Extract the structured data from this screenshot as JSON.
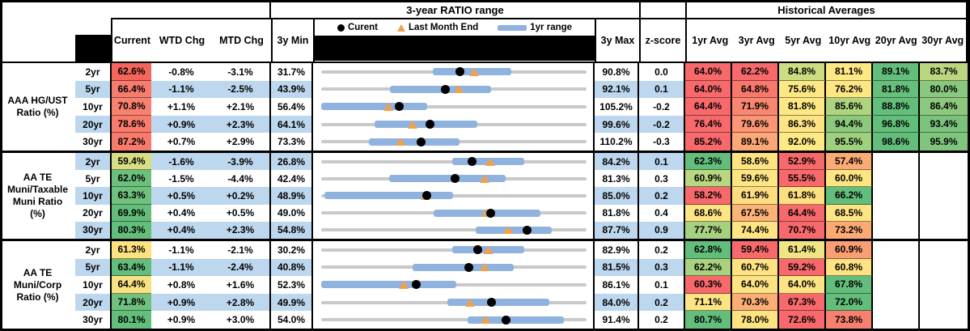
{
  "titles": {
    "ratio_range": "3-year RATIO range",
    "historical_averages": "Historical Averages"
  },
  "legend": {
    "current": "Curent",
    "last_month_end": "Last Month End",
    "one_yr_range": "1yr range"
  },
  "columns": {
    "current": "Current",
    "wtd": "WTD Chg",
    "mtd": "MTD Chg",
    "min3y": "3y Min",
    "max3y": "3y Max",
    "zscore": "z-score",
    "avgs": [
      "1yr Avg",
      "3yr Avg",
      "5yr Avg",
      "10yr Avg",
      "20yr Avg",
      "30yr Avg"
    ]
  },
  "colors": {
    "stripe": "#BDD7EE",
    "track": "#C9C9C9",
    "bar_1yr": "#8FB2DF",
    "dot_current": "#000000",
    "triangle_lme": "#F0A14E",
    "heat_red": "#F8696B",
    "heat_yellow": "#FFE984",
    "heat_green": "#63BE7B"
  },
  "chart_data": {
    "type": "table",
    "description": "Muni ratio table: current/WTD/MTD, 3-year range strip chart (dot=current, triangle=last month end, bar=1yr range), z-score, historical average heatmap",
    "groups": [
      {
        "label_lines": [
          "AAA HG/UST",
          "Ratio (%)"
        ],
        "rows": [
          {
            "term": "2yr",
            "stripe": false,
            "current": {
              "v": "62.6%",
              "c": "#F4655C"
            },
            "wtd": "-0.8%",
            "mtd": "-3.1%",
            "min": 31.7,
            "max": 90.8,
            "z": "0.0",
            "bar": [
              56.5,
              74.0
            ],
            "dot": 62.6,
            "tri": 65.7,
            "avgs": [
              {
                "v": "64.0%",
                "c": "#F8696B"
              },
              {
                "v": "62.2%",
                "c": "#F8696B"
              },
              {
                "v": "84.8%",
                "c": "#CCDD81"
              },
              {
                "v": "81.1%",
                "c": "#FFE984"
              },
              {
                "v": "89.1%",
                "c": "#63BE7B"
              },
              {
                "v": "83.7%",
                "c": "#BAD77F"
              }
            ]
          },
          {
            "term": "5yr",
            "stripe": true,
            "current": {
              "v": "66.4%",
              "c": "#F87C6D"
            },
            "wtd": "-1.1%",
            "mtd": "-2.5%",
            "min": 43.9,
            "max": 92.1,
            "z": "0.1",
            "bar": [
              56.4,
              74.7
            ],
            "dot": 66.4,
            "tri": 68.9,
            "avgs": [
              {
                "v": "64.0%",
                "c": "#F8696B"
              },
              {
                "v": "64.8%",
                "c": "#F9786C"
              },
              {
                "v": "75.6%",
                "c": "#FEE883"
              },
              {
                "v": "76.2%",
                "c": "#FEE783"
              },
              {
                "v": "81.8%",
                "c": "#68BF7B"
              },
              {
                "v": "80.0%",
                "c": "#89C87E"
              }
            ]
          },
          {
            "term": "10yr",
            "stripe": false,
            "current": {
              "v": "70.8%",
              "c": "#F9816F"
            },
            "wtd": "+1.1%",
            "mtd": "+2.1%",
            "min": 56.4,
            "max": 105.2,
            "z": "-0.2",
            "bar": [
              56.4,
              75.9
            ],
            "dot": 70.8,
            "tri": 68.7,
            "avgs": [
              {
                "v": "64.4%",
                "c": "#F8696B"
              },
              {
                "v": "71.9%",
                "c": "#F98670"
              },
              {
                "v": "81.8%",
                "c": "#FEE883"
              },
              {
                "v": "85.6%",
                "c": "#AFD47F"
              },
              {
                "v": "88.8%",
                "c": "#63BE7B"
              },
              {
                "v": "86.4%",
                "c": "#8CC97E"
              }
            ]
          },
          {
            "term": "20yr",
            "stripe": true,
            "current": {
              "v": "78.6%",
              "c": "#F87B6C"
            },
            "wtd": "+0.9%",
            "mtd": "+2.3%",
            "min": 64.1,
            "max": 99.6,
            "z": "-0.2",
            "bar": [
              71.2,
              85.0
            ],
            "dot": 78.6,
            "tri": 76.3,
            "avgs": [
              {
                "v": "76.4%",
                "c": "#F8696B"
              },
              {
                "v": "79.6%",
                "c": "#FA9674"
              },
              {
                "v": "86.3%",
                "c": "#FDE483"
              },
              {
                "v": "94.4%",
                "c": "#8CC97D"
              },
              {
                "v": "96.8%",
                "c": "#63BE7B"
              },
              {
                "v": "93.4%",
                "c": "#7BC37C"
              }
            ]
          },
          {
            "term": "30yr",
            "stripe": false,
            "current": {
              "v": "87.2%",
              "c": "#F87A6B"
            },
            "wtd": "+0.7%",
            "mtd": "+2.9%",
            "min": 73.3,
            "max": 110.2,
            "z": "-0.3",
            "bar": [
              79.9,
              92.5
            ],
            "dot": 87.2,
            "tri": 84.3,
            "avgs": [
              {
                "v": "85.2%",
                "c": "#F8696B"
              },
              {
                "v": "89.1%",
                "c": "#FBA876"
              },
              {
                "v": "92.0%",
                "c": "#FEEA84"
              },
              {
                "v": "95.5%",
                "c": "#9ED07E"
              },
              {
                "v": "98.6%",
                "c": "#63BE7B"
              },
              {
                "v": "95.9%",
                "c": "#80C57D"
              }
            ]
          }
        ]
      },
      {
        "label_lines": [
          "AA TE",
          "Muni/Taxable",
          "Muni Ratio",
          "(%)"
        ],
        "rows": [
          {
            "term": "2yr",
            "stripe": true,
            "current": {
              "v": "59.4%",
              "c": "#D8DE83"
            },
            "wtd": "-1.6%",
            "mtd": "-3.9%",
            "min": 26.8,
            "max": 84.2,
            "z": "0.1",
            "bar": [
              55.2,
              70.7
            ],
            "dot": 59.4,
            "tri": 63.3,
            "avgs": [
              {
                "v": "62.3%",
                "c": "#63BE7B"
              },
              {
                "v": "58.6%",
                "c": "#FEE383"
              },
              {
                "v": "52.9%",
                "c": "#F8696B"
              },
              {
                "v": "57.4%",
                "c": "#FBAC76"
              },
              {
                "v": "",
                "c": ""
              },
              {
                "v": "",
                "c": ""
              }
            ]
          },
          {
            "term": "5yr",
            "stripe": false,
            "current": {
              "v": "62.0%",
              "c": "#6CC07E"
            },
            "wtd": "-1.5%",
            "mtd": "-4.4%",
            "min": 42.4,
            "max": 81.3,
            "z": "0.3",
            "bar": [
              52.4,
              69.5
            ],
            "dot": 62.0,
            "tri": 66.4,
            "avgs": [
              {
                "v": "60.9%",
                "c": "#B9D780"
              },
              {
                "v": "59.6%",
                "c": "#FEE583"
              },
              {
                "v": "55.5%",
                "c": "#F8696B"
              },
              {
                "v": "60.0%",
                "c": "#FEE583"
              },
              {
                "v": "",
                "c": ""
              },
              {
                "v": "",
                "c": ""
              }
            ]
          },
          {
            "term": "10yr",
            "stripe": true,
            "current": {
              "v": "63.3%",
              "c": "#70C17D"
            },
            "wtd": "+0.5%",
            "mtd": "+0.2%",
            "min": 48.9,
            "max": 85.0,
            "z": "0.2",
            "bar": [
              49.3,
              66.8
            ],
            "dot": 63.3,
            "tri": 63.1,
            "avgs": [
              {
                "v": "58.2%",
                "c": "#F8696B"
              },
              {
                "v": "61.9%",
                "c": "#FEDD80"
              },
              {
                "v": "61.8%",
                "c": "#FEDF80"
              },
              {
                "v": "66.2%",
                "c": "#63BE7B"
              },
              {
                "v": "",
                "c": ""
              },
              {
                "v": "",
                "c": ""
              }
            ]
          },
          {
            "term": "20yr",
            "stripe": false,
            "current": {
              "v": "69.9%",
              "c": "#63BE7B"
            },
            "wtd": "+0.4%",
            "mtd": "+0.5%",
            "min": 49.0,
            "max": 81.8,
            "z": "0.4",
            "bar": [
              62.9,
              76.1
            ],
            "dot": 69.9,
            "tri": 69.4,
            "avgs": [
              {
                "v": "68.6%",
                "c": "#FEE583"
              },
              {
                "v": "67.5%",
                "c": "#FCB377"
              },
              {
                "v": "64.4%",
                "c": "#F8696B"
              },
              {
                "v": "68.5%",
                "c": "#FEE583"
              },
              {
                "v": "",
                "c": ""
              },
              {
                "v": "",
                "c": ""
              }
            ]
          },
          {
            "term": "30yr",
            "stripe": true,
            "current": {
              "v": "80.3%",
              "c": "#63BE7B"
            },
            "wtd": "+0.4%",
            "mtd": "+2.3%",
            "min": 54.8,
            "max": 87.7,
            "z": "0.9",
            "bar": [
              74.0,
              83.4
            ],
            "dot": 80.3,
            "tri": 78.0,
            "avgs": [
              {
                "v": "77.7%",
                "c": "#A6D17F"
              },
              {
                "v": "74.4%",
                "c": "#FEE482"
              },
              {
                "v": "70.7%",
                "c": "#F8696B"
              },
              {
                "v": "73.2%",
                "c": "#FCA974"
              },
              {
                "v": "",
                "c": ""
              },
              {
                "v": "",
                "c": ""
              }
            ]
          }
        ]
      },
      {
        "label_lines": [
          "AA TE",
          "Muni/Corp",
          "Ratio (%)"
        ],
        "rows": [
          {
            "term": "2yr",
            "stripe": false,
            "current": {
              "v": "61.3%",
              "c": "#FEE181"
            },
            "wtd": "-1.1%",
            "mtd": "-2.1%",
            "min": 30.2,
            "max": 82.9,
            "z": "0.2",
            "bar": [
              56.2,
              70.6
            ],
            "dot": 61.3,
            "tri": 63.4,
            "avgs": [
              {
                "v": "62.8%",
                "c": "#63BE7B"
              },
              {
                "v": "59.4%",
                "c": "#F8696B"
              },
              {
                "v": "61.4%",
                "c": "#EFE583"
              },
              {
                "v": "60.9%",
                "c": "#FA9E74"
              },
              {
                "v": "",
                "c": ""
              },
              {
                "v": "",
                "c": ""
              }
            ]
          },
          {
            "term": "5yr",
            "stripe": true,
            "current": {
              "v": "63.4%",
              "c": "#63BE7B"
            },
            "wtd": "-1.1%",
            "mtd": "-2.4%",
            "min": 40.8,
            "max": 81.5,
            "z": "0.3",
            "bar": [
              54.8,
              70.4
            ],
            "dot": 63.4,
            "tri": 65.8,
            "avgs": [
              {
                "v": "62.2%",
                "c": "#A9D27F"
              },
              {
                "v": "60.7%",
                "c": "#FEE383"
              },
              {
                "v": "59.2%",
                "c": "#F8696B"
              },
              {
                "v": "60.8%",
                "c": "#FEE283"
              },
              {
                "v": "",
                "c": ""
              },
              {
                "v": "",
                "c": ""
              }
            ]
          },
          {
            "term": "10yr",
            "stripe": false,
            "current": {
              "v": "64.4%",
              "c": "#F7E181"
            },
            "wtd": "+0.8%",
            "mtd": "+1.6%",
            "min": 52.3,
            "max": 86.1,
            "z": "0.1",
            "bar": [
              52.3,
              69.5
            ],
            "dot": 64.4,
            "tri": 62.8,
            "avgs": [
              {
                "v": "60.3%",
                "c": "#F8696B"
              },
              {
                "v": "64.0%",
                "c": "#FEE382"
              },
              {
                "v": "64.0%",
                "c": "#FEE382"
              },
              {
                "v": "67.8%",
                "c": "#63BE7B"
              },
              {
                "v": "",
                "c": ""
              },
              {
                "v": "",
                "c": ""
              }
            ]
          },
          {
            "term": "20yr",
            "stripe": true,
            "current": {
              "v": "71.8%",
              "c": "#6FC17D"
            },
            "wtd": "+0.9%",
            "mtd": "+2.8%",
            "min": 49.9,
            "max": 84.0,
            "z": "0.2",
            "bar": [
              66.1,
              79.2
            ],
            "dot": 71.8,
            "tri": 69.0,
            "avgs": [
              {
                "v": "71.1%",
                "c": "#FEE583"
              },
              {
                "v": "70.3%",
                "c": "#FBAE76"
              },
              {
                "v": "67.3%",
                "c": "#F8696B"
              },
              {
                "v": "72.0%",
                "c": "#63BE7B"
              },
              {
                "v": "",
                "c": ""
              },
              {
                "v": "",
                "c": ""
              }
            ]
          },
          {
            "term": "30yr",
            "stripe": false,
            "current": {
              "v": "80.1%",
              "c": "#63BE7B"
            },
            "wtd": "+0.9%",
            "mtd": "+3.0%",
            "min": 54.0,
            "max": 91.4,
            "z": "0.2",
            "bar": [
              74.6,
              88.2
            ],
            "dot": 80.1,
            "tri": 77.1,
            "avgs": [
              {
                "v": "80.7%",
                "c": "#63BE7B"
              },
              {
                "v": "78.0%",
                "c": "#FEE382"
              },
              {
                "v": "72.6%",
                "c": "#F8696B"
              },
              {
                "v": "73.8%",
                "c": "#F8806E"
              },
              {
                "v": "",
                "c": ""
              },
              {
                "v": "",
                "c": ""
              }
            ]
          }
        ]
      }
    ]
  }
}
